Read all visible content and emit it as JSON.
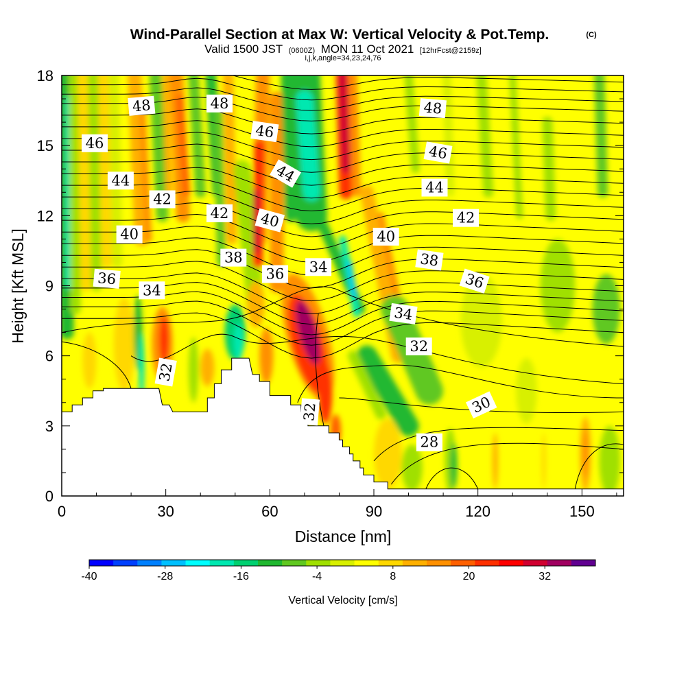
{
  "title": "Wind-Parallel Section at Max W: Vertical Velocity & Pot.Temp.",
  "copyright_mark": "(C)",
  "subtitle": {
    "valid_prefix": "Valid 1500 JST",
    "utc": "(0600Z)",
    "date": "MON 11 Oct 2021",
    "forecast": "[12hrFcst@2159z]"
  },
  "subtitle2": "i,j,k,angle=34,23,24,76",
  "chart_data": {
    "type": "heatmap",
    "xlabel": "Distance [nm]",
    "ylabel": "Height [Kft MSL]",
    "xlim": [
      0,
      162
    ],
    "ylim": [
      0,
      18
    ],
    "x_ticks": [
      0,
      30,
      60,
      90,
      120,
      150
    ],
    "y_ticks": [
      0,
      3,
      6,
      9,
      12,
      15,
      18
    ],
    "colorbar": {
      "label": "Vertical Velocity [cm/s]",
      "min": -40,
      "max": 40,
      "step": 4,
      "tick_values": [
        -40,
        -28,
        -16,
        -4,
        8,
        20,
        32
      ],
      "colors": [
        "#0000ff",
        "#0040ff",
        "#0080ff",
        "#00c0ff",
        "#00ffff",
        "#00e8b0",
        "#00d070",
        "#20b830",
        "#60c820",
        "#a0e000",
        "#d8f000",
        "#ffff00",
        "#ffd800",
        "#ffb000",
        "#ff9000",
        "#ff6000",
        "#ff3000",
        "#ff0000",
        "#d00030",
        "#a00060",
        "#600090"
      ]
    },
    "contours": {
      "variable": "Potential Temperature",
      "labels": [
        {
          "text": "48",
          "x": 23,
          "y": 16.7,
          "angle": -5
        },
        {
          "text": "48",
          "x": 45.5,
          "y": 16.8,
          "angle": 0
        },
        {
          "text": "48",
          "x": 107,
          "y": 16.6,
          "angle": 5
        },
        {
          "text": "46",
          "x": 9.5,
          "y": 15.1,
          "angle": 0
        },
        {
          "text": "46",
          "x": 58.5,
          "y": 15.6,
          "angle": 8
        },
        {
          "text": "46",
          "x": 108.5,
          "y": 14.7,
          "angle": 10
        },
        {
          "text": "44",
          "x": 17,
          "y": 13.5,
          "angle": 0
        },
        {
          "text": "44",
          "x": 64.5,
          "y": 13.8,
          "angle": 30
        },
        {
          "text": "44",
          "x": 107.5,
          "y": 13.2,
          "angle": 0
        },
        {
          "text": "42",
          "x": 29,
          "y": 12.7,
          "angle": 0
        },
        {
          "text": "42",
          "x": 45.5,
          "y": 12.1,
          "angle": 0
        },
        {
          "text": "42",
          "x": 116.5,
          "y": 11.9,
          "angle": 0
        },
        {
          "text": "40",
          "x": 19.5,
          "y": 11.2,
          "angle": 0
        },
        {
          "text": "40",
          "x": 60,
          "y": 11.8,
          "angle": 15
        },
        {
          "text": "40",
          "x": 93.5,
          "y": 11.1,
          "angle": 0
        },
        {
          "text": "38",
          "x": 49.5,
          "y": 10.2,
          "angle": 0
        },
        {
          "text": "38",
          "x": 106,
          "y": 10.1,
          "angle": 8
        },
        {
          "text": "36",
          "x": 13,
          "y": 9.3,
          "angle": 5
        },
        {
          "text": "36",
          "x": 61.5,
          "y": 9.5,
          "angle": 0
        },
        {
          "text": "36",
          "x": 119,
          "y": 9.2,
          "angle": 18
        },
        {
          "text": "34",
          "x": 26,
          "y": 8.8,
          "angle": 0
        },
        {
          "text": "34",
          "x": 74,
          "y": 9.8,
          "angle": 0
        },
        {
          "text": "34",
          "x": 98.5,
          "y": 7.8,
          "angle": 8
        },
        {
          "text": "32",
          "x": 30,
          "y": 5.3,
          "angle": -80
        },
        {
          "text": "32",
          "x": 103,
          "y": 6.4,
          "angle": 0
        },
        {
          "text": "32",
          "x": 71.5,
          "y": 3.6,
          "angle": -85
        },
        {
          "text": "30",
          "x": 121,
          "y": 3.9,
          "angle": -25
        },
        {
          "text": "28",
          "x": 106,
          "y": 2.3,
          "angle": 0
        }
      ]
    },
    "terrain_profile": [
      [
        0,
        3.6
      ],
      [
        3,
        3.6
      ],
      [
        3,
        3.9
      ],
      [
        6,
        3.9
      ],
      [
        6,
        4.2
      ],
      [
        9,
        4.2
      ],
      [
        9,
        4.5
      ],
      [
        12,
        4.5
      ],
      [
        12,
        4.6
      ],
      [
        28,
        4.6
      ],
      [
        29,
        3.9
      ],
      [
        31,
        3.9
      ],
      [
        32,
        3.6
      ],
      [
        42,
        3.6
      ],
      [
        42,
        4.2
      ],
      [
        44,
        4.2
      ],
      [
        44,
        4.8
      ],
      [
        46,
        4.8
      ],
      [
        46,
        5.4
      ],
      [
        49,
        5.4
      ],
      [
        49,
        5.9
      ],
      [
        54,
        5.9
      ],
      [
        55,
        5.2
      ],
      [
        57,
        5.2
      ],
      [
        57,
        4.9
      ],
      [
        60,
        4.9
      ],
      [
        60,
        4.3
      ],
      [
        66,
        4.3
      ],
      [
        66,
        3.9
      ],
      [
        69,
        3.9
      ],
      [
        69,
        3.6
      ],
      [
        71,
        3.6
      ],
      [
        71,
        3.0
      ],
      [
        77,
        3.0
      ],
      [
        77,
        2.7
      ],
      [
        80,
        2.7
      ],
      [
        80,
        2.4
      ],
      [
        81,
        2.4
      ],
      [
        81,
        2.1
      ],
      [
        83,
        2.1
      ],
      [
        83,
        1.8
      ],
      [
        84,
        1.8
      ],
      [
        84,
        1.5
      ],
      [
        86,
        1.5
      ],
      [
        86,
        1.2
      ],
      [
        87,
        1.2
      ],
      [
        87,
        0.9
      ],
      [
        90,
        0.9
      ],
      [
        90,
        0.6
      ],
      [
        94,
        0.6
      ],
      [
        94,
        0.3
      ],
      [
        162,
        0.3
      ]
    ]
  }
}
